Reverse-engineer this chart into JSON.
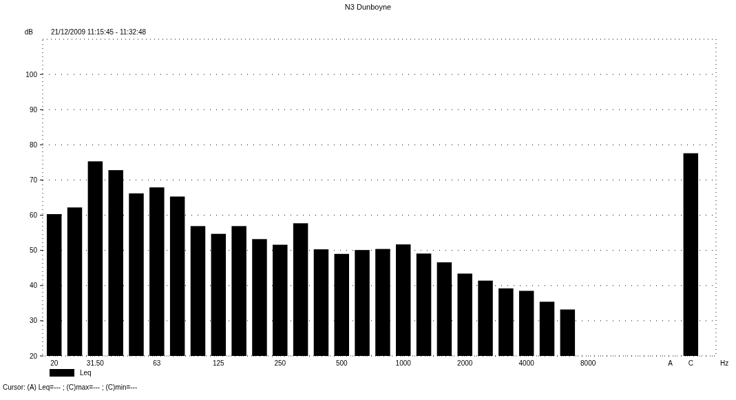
{
  "chart_data": {
    "type": "bar",
    "title": "N3 Dunboyne",
    "subtitle": "21/12/2009 11:15:45 - 11:32:48",
    "ylabel": "dB",
    "xlabel": "Hz",
    "categories": [
      "20",
      null,
      "31.50",
      null,
      null,
      "63",
      null,
      null,
      "125",
      null,
      null,
      "250",
      null,
      null,
      "500",
      null,
      null,
      "1000",
      null,
      null,
      "2000",
      null,
      null,
      "4000",
      null,
      null,
      "8000",
      null,
      null,
      null,
      "A",
      "C"
    ],
    "series": [
      {
        "name": "Leq",
        "color": "#000000",
        "values": [
          60.3,
          62.2,
          75.3,
          72.8,
          66.2,
          67.9,
          65.3,
          56.9,
          54.7,
          56.9,
          53.2,
          51.6,
          57.7,
          50.3,
          49.0,
          50.1,
          50.4,
          51.7,
          49.1,
          46.6,
          43.4,
          41.4,
          39.2,
          38.5,
          35.4,
          33.2,
          null,
          null,
          null,
          null,
          null,
          77.6
        ]
      }
    ],
    "ylim": [
      20,
      110
    ],
    "yticks": [
      20,
      30,
      40,
      50,
      60,
      70,
      80,
      90,
      100
    ],
    "grid": "y",
    "legend": "bottom left",
    "annotations": [
      "Cursor: (A) Leq=--- ; (C)max=--- ; (C)min=---"
    ]
  }
}
